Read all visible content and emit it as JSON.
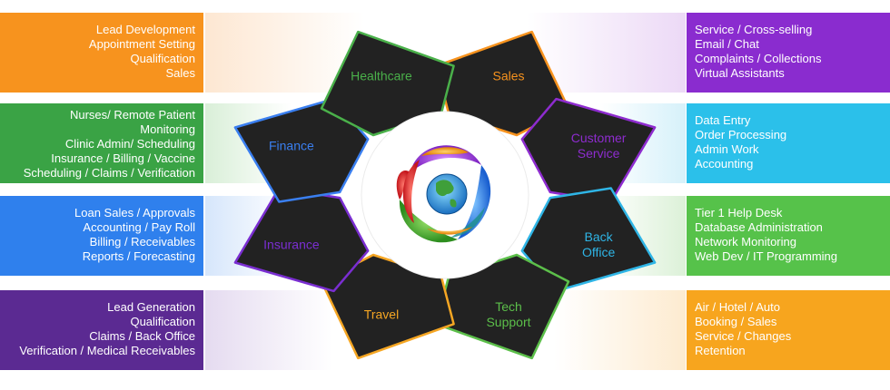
{
  "segments": [
    {
      "id": "sales",
      "lines": [
        "Sales"
      ],
      "color": "#f7931e"
    },
    {
      "id": "customer-service",
      "lines": [
        "Customer",
        "Service"
      ],
      "color": "#8e2ccf"
    },
    {
      "id": "back-office",
      "lines": [
        "Back",
        "Office"
      ],
      "color": "#2fb5e6"
    },
    {
      "id": "tech-support",
      "lines": [
        "Tech",
        "Support"
      ],
      "color": "#5cbf4a"
    },
    {
      "id": "travel",
      "lines": [
        "Travel"
      ],
      "color": "#f5a623"
    },
    {
      "id": "insurance",
      "lines": [
        "Insurance"
      ],
      "color": "#7a2ed1"
    },
    {
      "id": "finance",
      "lines": [
        "Finance"
      ],
      "color": "#3a7ff0"
    },
    {
      "id": "healthcare",
      "lines": [
        "Healthcare"
      ],
      "color": "#4ab04a"
    }
  ],
  "left_boxes": [
    {
      "id": "sales",
      "color": "#f7931e",
      "items": [
        "Lead Development",
        "Appointment Setting",
        "Qualification",
        "Sales"
      ]
    },
    {
      "id": "healthcare",
      "color": "#3aa345",
      "items": [
        "Nurses/ Remote Patient",
        "Monitoring",
        "Clinic Admin/ Scheduling",
        "Insurance / Billing / Vaccine",
        "Scheduling / Claims / Verification"
      ]
    },
    {
      "id": "finance",
      "color": "#2f80ed",
      "items": [
        "Loan Sales / Approvals",
        "Accounting / Pay Roll",
        "Billing / Receivables",
        "Reports / Forecasting"
      ]
    },
    {
      "id": "insurance",
      "color": "#5b2a92",
      "items": [
        "Lead Generation",
        "Qualification",
        "Claims / Back Office",
        "Verification / Medical Receivables"
      ]
    }
  ],
  "right_boxes": [
    {
      "id": "customer-service",
      "color": "#8a2ccf",
      "items": [
        "Service / Cross-selling",
        "Email / Chat",
        "Complaints / Collections",
        "Virtual Assistants"
      ]
    },
    {
      "id": "back-office",
      "color": "#2bc0ea",
      "items": [
        "Data Entry",
        "Order Processing",
        "Admin Work",
        "Accounting"
      ]
    },
    {
      "id": "tech-support",
      "color": "#56c24a",
      "items": [
        "Tier 1 Help Desk",
        "Database Administration",
        "Network Monitoring",
        "Web Dev / IT Programming"
      ]
    },
    {
      "id": "travel",
      "color": "#f7a51e",
      "items": [
        "Air / Hotel / Auto",
        "Booking / Sales",
        "Service / Changes",
        "Retention"
      ]
    }
  ],
  "center_icon": "globe-logo-icon"
}
